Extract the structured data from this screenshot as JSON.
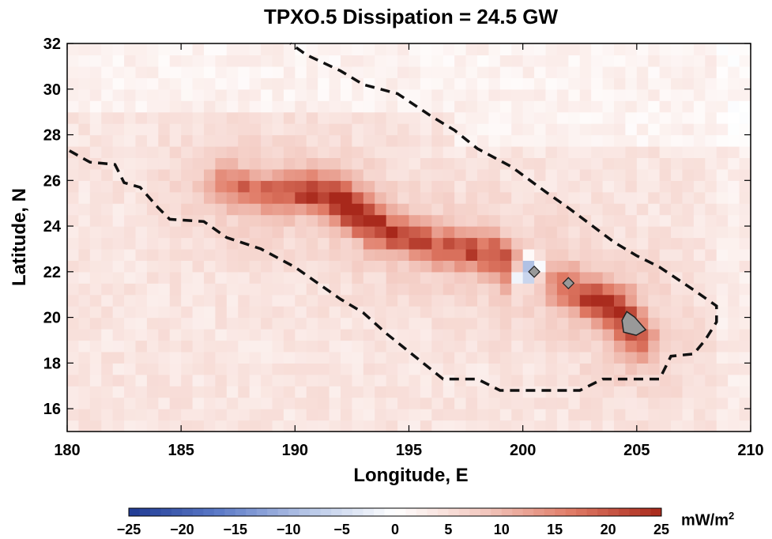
{
  "chart_data": {
    "type": "heatmap",
    "title": "TPXO.5 Dissipation = 24.5 GW",
    "xlabel": "Longitude, E",
    "ylabel": "Latitude, N",
    "xlim": [
      180,
      210
    ],
    "ylim": [
      15,
      32
    ],
    "xticks": [
      180,
      185,
      190,
      195,
      200,
      205,
      210
    ],
    "yticks": [
      16,
      18,
      20,
      22,
      24,
      26,
      28,
      30,
      32
    ],
    "colorbar": {
      "ticks": [
        -25,
        -20,
        -15,
        -10,
        -5,
        0,
        5,
        10,
        15,
        20,
        25
      ],
      "range": [
        -25,
        25
      ],
      "units": "mW/m",
      "units_exponent": "2",
      "colormap": [
        "#1f3a93",
        "#5b79c7",
        "#b5c5e6",
        "#ffffff",
        "#f3c9c0",
        "#e07a65",
        "#a8281b"
      ]
    },
    "background_level": 4,
    "ridge": {
      "description_values": [
        {
          "lon": 187.0,
          "lat": 25.8,
          "value": 14
        },
        {
          "lon": 189.0,
          "lat": 25.4,
          "value": 16
        },
        {
          "lon": 190.5,
          "lat": 25.6,
          "value": 20
        },
        {
          "lon": 191.5,
          "lat": 25.4,
          "value": 22
        },
        {
          "lon": 192.5,
          "lat": 24.8,
          "value": 25
        },
        {
          "lon": 193.5,
          "lat": 24.0,
          "value": 22
        },
        {
          "lon": 195.0,
          "lat": 23.5,
          "value": 18
        },
        {
          "lon": 197.0,
          "lat": 23.0,
          "value": 17
        },
        {
          "lon": 198.5,
          "lat": 22.8,
          "value": 20
        },
        {
          "lon": 199.5,
          "lat": 22.2,
          "value": 18
        },
        {
          "lon": 200.0,
          "lat": 22.1,
          "value": -12
        },
        {
          "lon": 201.5,
          "lat": 21.6,
          "value": 15
        },
        {
          "lon": 203.0,
          "lat": 20.8,
          "value": 20
        },
        {
          "lon": 204.0,
          "lat": 20.6,
          "value": 24
        },
        {
          "lon": 205.0,
          "lat": 19.0,
          "value": 18
        }
      ]
    },
    "contour_dashed": [
      [
        [
          180.1,
          27.3
        ],
        [
          181.0,
          26.8
        ],
        [
          182.1,
          26.7
        ],
        [
          182.5,
          25.9
        ],
        [
          183.2,
          25.7
        ],
        [
          184.0,
          24.8
        ],
        [
          184.5,
          24.3
        ],
        [
          186.0,
          24.2
        ],
        [
          187.0,
          23.5
        ],
        [
          188.5,
          23.0
        ],
        [
          190.0,
          22.2
        ],
        [
          191.0,
          21.5
        ],
        [
          192.0,
          20.8
        ],
        [
          193.0,
          20.2
        ],
        [
          194.0,
          19.3
        ],
        [
          195.0,
          18.5
        ],
        [
          196.5,
          17.3
        ],
        [
          198.0,
          17.3
        ],
        [
          199.0,
          16.8
        ],
        [
          202.5,
          16.8
        ],
        [
          203.5,
          17.3
        ],
        [
          205.0,
          17.3
        ],
        [
          206.0,
          17.3
        ],
        [
          206.5,
          18.3
        ],
        [
          207.5,
          18.4
        ],
        [
          208.0,
          19.0
        ],
        [
          208.5,
          19.8
        ],
        [
          208.5,
          20.5
        ],
        [
          207.5,
          21.2
        ],
        [
          206.0,
          22.2
        ],
        [
          205.0,
          22.7
        ],
        [
          204.0,
          23.3
        ],
        [
          202.8,
          24.2
        ],
        [
          202.0,
          24.8
        ],
        [
          201.0,
          25.5
        ],
        [
          199.5,
          26.6
        ],
        [
          198.0,
          27.4
        ],
        [
          197.0,
          28.2
        ],
        [
          196.0,
          28.8
        ],
        [
          194.5,
          29.8
        ],
        [
          193.0,
          30.2
        ],
        [
          192.0,
          30.8
        ],
        [
          190.5,
          31.5
        ],
        [
          189.8,
          32.0
        ]
      ]
    ],
    "islands": [
      {
        "lon": 200.5,
        "lat": 22.0,
        "size": "small"
      },
      {
        "lon": 202.0,
        "lat": 21.5,
        "size": "small"
      },
      {
        "lon": 204.7,
        "lat": 19.7,
        "size": "large"
      }
    ]
  }
}
